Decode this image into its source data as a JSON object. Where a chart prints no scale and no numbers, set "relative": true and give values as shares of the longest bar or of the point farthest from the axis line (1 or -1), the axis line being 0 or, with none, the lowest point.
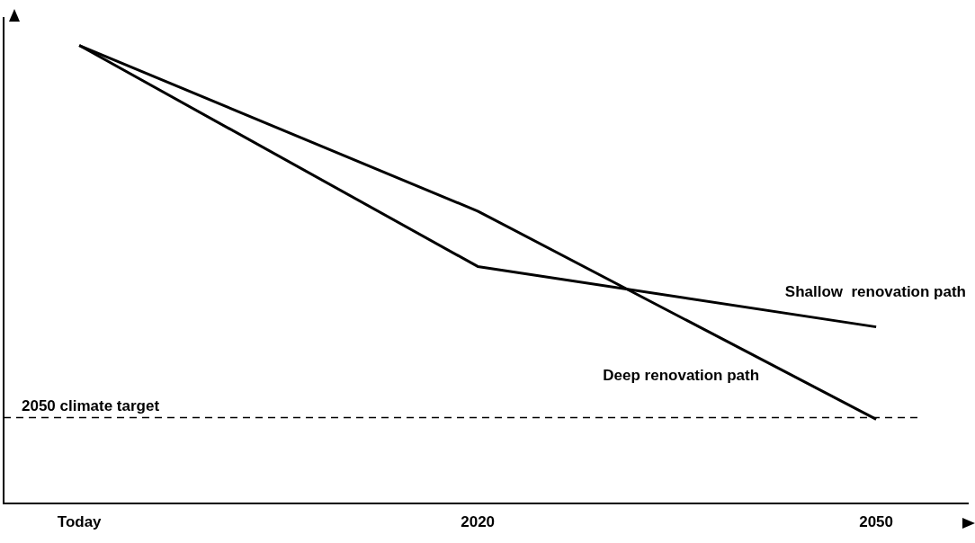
{
  "chart_data": {
    "type": "line",
    "relative": true,
    "categories": [
      "Today",
      "2020",
      "2050"
    ],
    "series": [
      {
        "name": "Shallow  renovation path",
        "color": "#000000",
        "values": [
          1,
          0.517,
          0.385
        ]
      },
      {
        "name": "Deep renovation path",
        "color": "#000000",
        "values": [
          1,
          0.638,
          0.183
        ]
      }
    ],
    "ref_lines": [
      {
        "axis": "y",
        "value": 0.187,
        "label": "2050 climate target",
        "line_style": "dashed",
        "color": "#000000"
      }
    ],
    "grid": false,
    "legend": false,
    "marker": "none",
    "line_style": "solid"
  }
}
